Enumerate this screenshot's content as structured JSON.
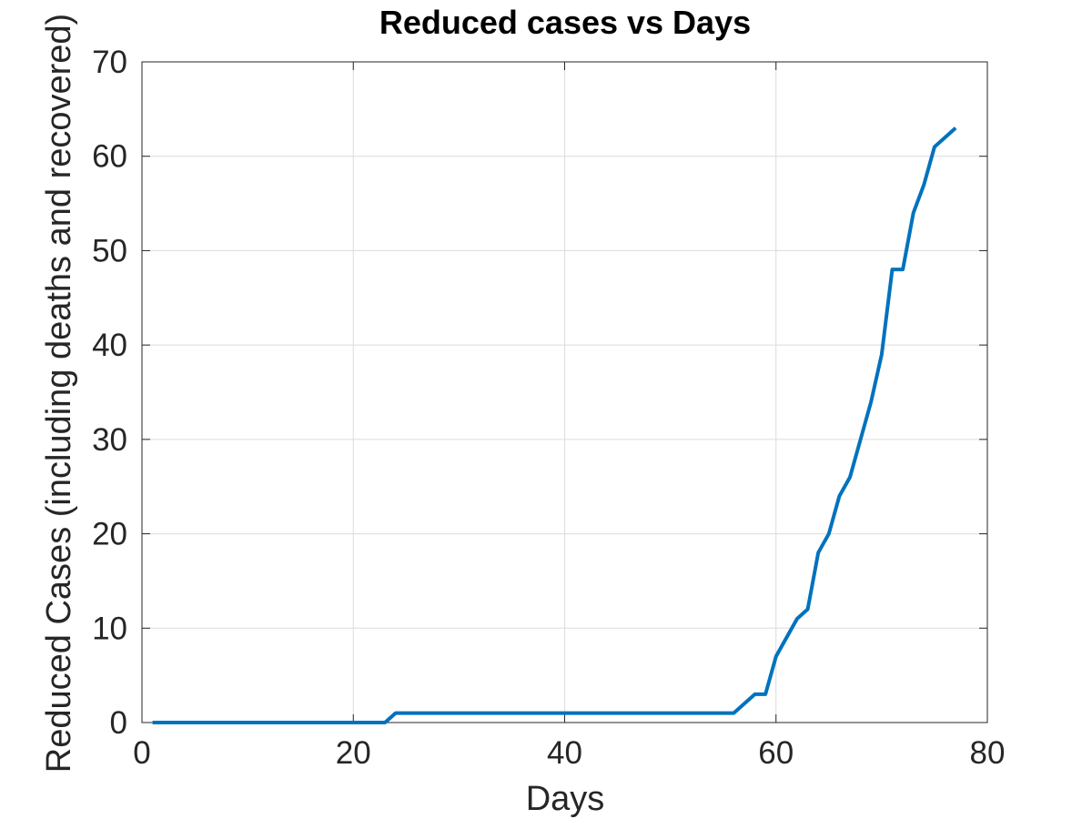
{
  "chart_data": {
    "type": "line",
    "title": "Reduced cases vs Days",
    "xlabel": "Days",
    "ylabel": "Reduced Cases (including deaths and recovered)",
    "xlim": [
      0,
      80
    ],
    "ylim": [
      0,
      70
    ],
    "xticks": [
      0,
      20,
      40,
      60,
      80
    ],
    "yticks": [
      0,
      10,
      20,
      30,
      40,
      50,
      60,
      70
    ],
    "grid": true,
    "colors": {
      "line": "#0072BD",
      "grid": "#dcdcdc",
      "axis": "#262626"
    },
    "series": [
      {
        "x": [
          1,
          2,
          3,
          4,
          5,
          6,
          7,
          8,
          9,
          10,
          11,
          12,
          13,
          14,
          15,
          16,
          17,
          18,
          19,
          20,
          21,
          22,
          23,
          24,
          25,
          26,
          27,
          28,
          29,
          30,
          31,
          32,
          33,
          34,
          35,
          36,
          37,
          38,
          39,
          40,
          41,
          42,
          43,
          44,
          45,
          46,
          47,
          48,
          49,
          50,
          51,
          52,
          53,
          54,
          55,
          56,
          57,
          58,
          59,
          60,
          61,
          62,
          63,
          64,
          65,
          66,
          67,
          68,
          69,
          70,
          71,
          72,
          73,
          74,
          75,
          76,
          77
        ],
        "y": [
          0,
          0,
          0,
          0,
          0,
          0,
          0,
          0,
          0,
          0,
          0,
          0,
          0,
          0,
          0,
          0,
          0,
          0,
          0,
          0,
          0,
          0,
          0,
          1,
          1,
          1,
          1,
          1,
          1,
          1,
          1,
          1,
          1,
          1,
          1,
          1,
          1,
          1,
          1,
          1,
          1,
          1,
          1,
          1,
          1,
          1,
          1,
          1,
          1,
          1,
          1,
          1,
          1,
          1,
          1,
          1,
          2,
          3,
          3,
          7,
          9,
          11,
          12,
          18,
          20,
          24,
          26,
          30,
          34,
          39,
          48,
          48,
          54,
          57,
          61,
          62,
          63
        ]
      }
    ]
  }
}
